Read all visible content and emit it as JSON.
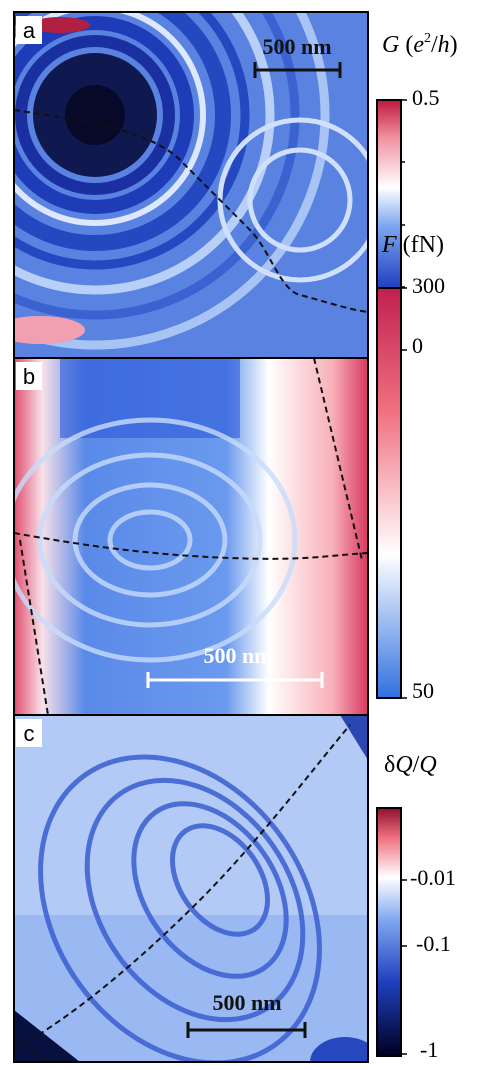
{
  "panels": [
    {
      "label": "a",
      "scale_bar": "500 nm",
      "colorbar": {
        "title": [
          "G",
          " (",
          "e",
          "2",
          "/",
          "h",
          ")"
        ],
        "ticks": [
          "0.5",
          "0"
        ]
      }
    },
    {
      "label": "b",
      "scale_bar": "500 nm",
      "colorbar": {
        "title": [
          "F",
          " (fN)"
        ],
        "ticks": [
          "300",
          "50"
        ]
      }
    },
    {
      "label": "c",
      "scale_bar": "500 nm",
      "colorbar": {
        "title": [
          "δ",
          "Q",
          "/",
          "Q"
        ],
        "ticks": [
          "-0.01",
          "-0.1",
          "-1"
        ]
      }
    }
  ]
}
